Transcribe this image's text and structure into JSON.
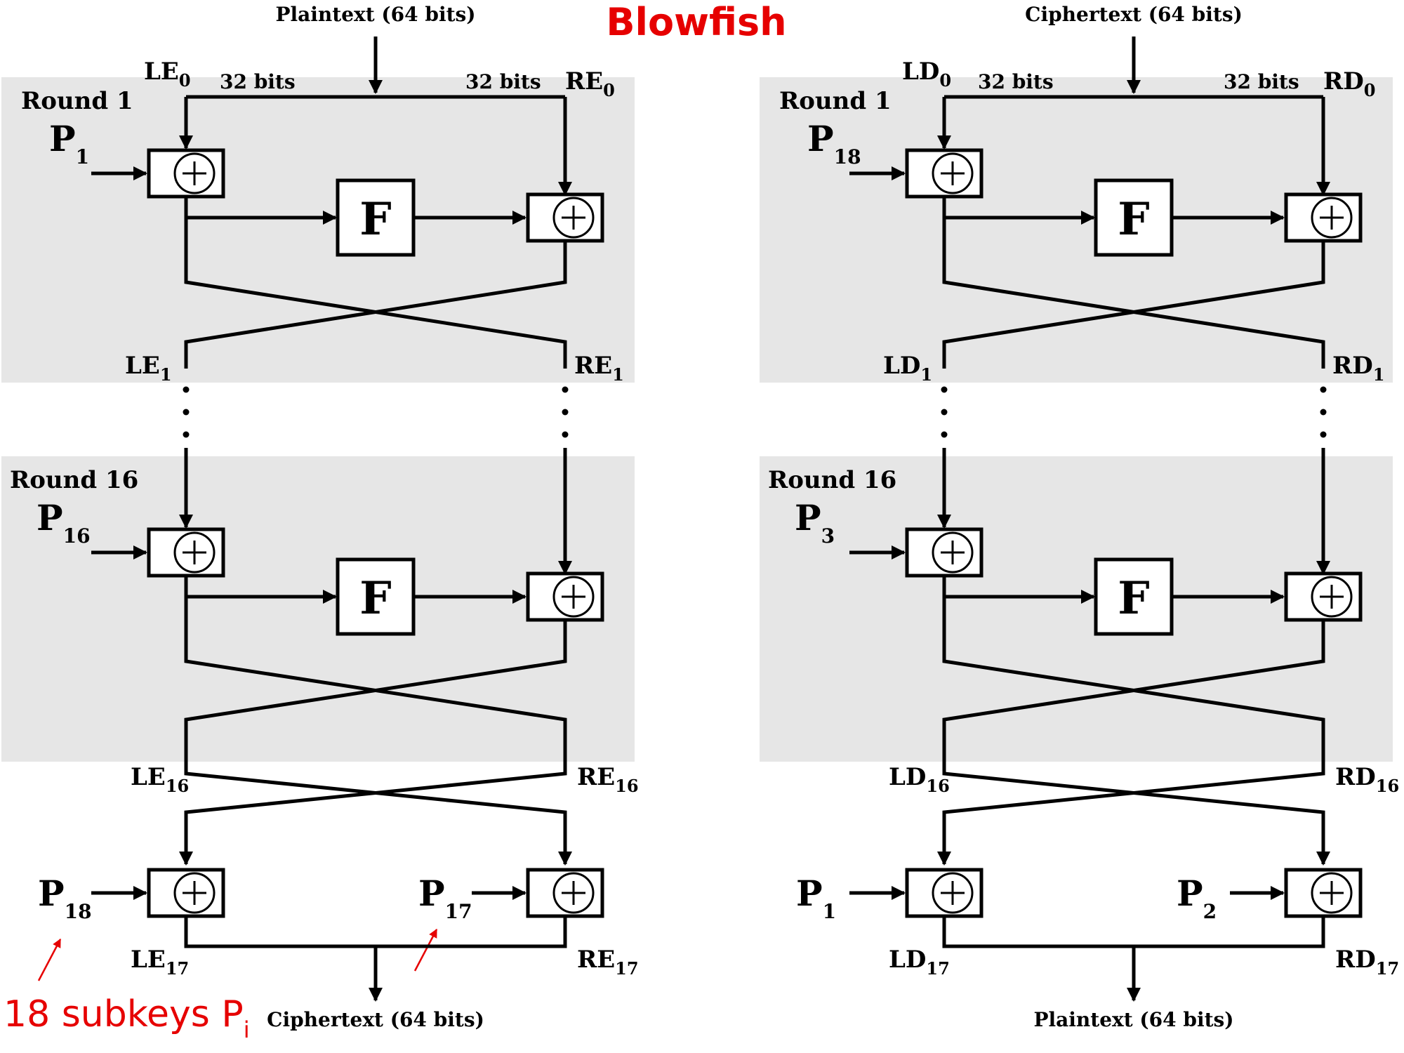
{
  "title": "Blowfish",
  "note": {
    "text": "18 subkeys P",
    "sub": "i"
  },
  "encryption": {
    "input_label": "Plaintext (64 bits)",
    "output_label": "Ciphertext (64 bits)",
    "left_bits": "32 bits",
    "right_bits": "32 bits",
    "rounds": [
      {
        "label": "Round 1",
        "key": "P",
        "key_sub": "1"
      },
      {
        "label": "Round 16",
        "key": "P",
        "key_sub": "16"
      }
    ],
    "function_label": "F",
    "halves": {
      "L0": "LE",
      "L0_sub": "0",
      "R0": "RE",
      "R0_sub": "0",
      "L1": "LE",
      "L1_sub": "1",
      "R1": "RE",
      "R1_sub": "1",
      "L16": "LE",
      "L16_sub": "16",
      "R16": "RE",
      "R16_sub": "16",
      "L17": "LE",
      "L17_sub": "17",
      "R17": "RE",
      "R17_sub": "17"
    },
    "final_keys": {
      "left": "P",
      "left_sub": "18",
      "right": "P",
      "right_sub": "17"
    }
  },
  "decryption": {
    "input_label": "Ciphertext (64 bits)",
    "output_label": "Plaintext (64 bits)",
    "left_bits": "32 bits",
    "right_bits": "32 bits",
    "rounds": [
      {
        "label": "Round 1",
        "key": "P",
        "key_sub": "18"
      },
      {
        "label": "Round 16",
        "key": "P",
        "key_sub": "3"
      }
    ],
    "function_label": "F",
    "halves": {
      "L0": "LD",
      "L0_sub": "0",
      "R0": "RD",
      "R0_sub": "0",
      "L1": "LD",
      "L1_sub": "1",
      "R1": "RD",
      "R1_sub": "1",
      "L16": "LD",
      "L16_sub": "16",
      "R16": "RD",
      "R16_sub": "16",
      "L17": "LD",
      "L17_sub": "17",
      "R17": "RD",
      "R17_sub": "17"
    },
    "final_keys": {
      "left": "P",
      "left_sub": "1",
      "right": "P",
      "right_sub": "2"
    }
  }
}
